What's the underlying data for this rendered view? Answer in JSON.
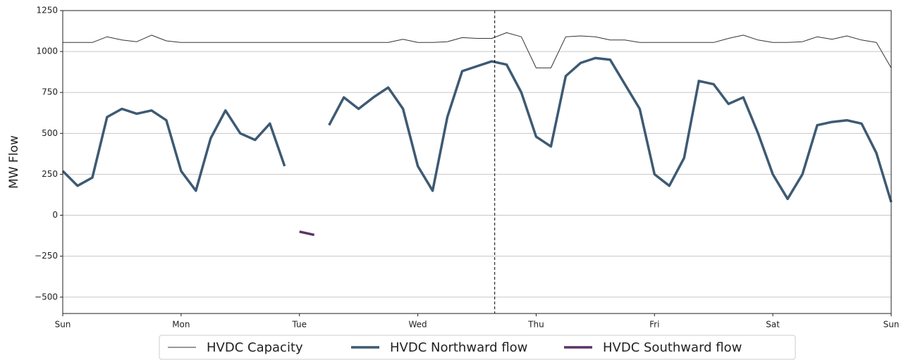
{
  "chart_data": {
    "type": "line",
    "ylabel": "MW Flow",
    "x": [
      0,
      0.125,
      0.25,
      0.375,
      0.5,
      0.625,
      0.75,
      0.875,
      1,
      1.125,
      1.25,
      1.375,
      1.5,
      1.625,
      1.75,
      1.875,
      2,
      2.125,
      2.25,
      2.375,
      2.5,
      2.625,
      2.75,
      2.875,
      3,
      3.125,
      3.25,
      3.375,
      3.5,
      3.625,
      3.75,
      3.875,
      4,
      4.125,
      4.25,
      4.375,
      4.5,
      4.625,
      4.75,
      4.875,
      5,
      5.125,
      5.25,
      5.375,
      5.5,
      5.625,
      5.75,
      5.875,
      6,
      6.125,
      6.25,
      6.375,
      6.5,
      6.625,
      6.75,
      6.875,
      7
    ],
    "series": [
      {
        "name": "HVDC Capacity",
        "color": "#333333",
        "width": 1,
        "values": [
          1055,
          1055,
          1055,
          1090,
          1070,
          1060,
          1100,
          1065,
          1055,
          1055,
          1055,
          1055,
          1055,
          1055,
          1055,
          1055,
          1055,
          1055,
          1055,
          1055,
          1055,
          1055,
          1055,
          1075,
          1055,
          1055,
          1060,
          1085,
          1080,
          1080,
          1115,
          1090,
          900,
          900,
          1090,
          1095,
          1090,
          1070,
          1070,
          1055,
          1055,
          1055,
          1055,
          1055,
          1055,
          1080,
          1100,
          1070,
          1055,
          1055,
          1060,
          1090,
          1075,
          1095,
          1070,
          1055,
          900
        ]
      },
      {
        "name": "HVDC Northward flow",
        "color": "#3d5a73",
        "width": 3.5,
        "values": [
          270,
          180,
          230,
          600,
          650,
          620,
          640,
          580,
          270,
          150,
          470,
          640,
          500,
          460,
          560,
          300,
          null,
          null,
          550,
          720,
          650,
          720,
          780,
          650,
          300,
          150,
          600,
          880,
          910,
          940,
          920,
          750,
          480,
          420,
          850,
          930,
          960,
          950,
          800,
          650,
          250,
          180,
          350,
          820,
          800,
          680,
          720,
          500,
          250,
          100,
          250,
          550,
          570,
          580,
          560,
          380,
          80
        ]
      },
      {
        "name": "HVDC Southward flow",
        "color": "#5b3566",
        "width": 3.5,
        "values": [
          null,
          null,
          null,
          null,
          null,
          null,
          null,
          null,
          null,
          null,
          null,
          null,
          null,
          null,
          null,
          null,
          -100,
          -120,
          null,
          null,
          null,
          null,
          null,
          null,
          null,
          null,
          null,
          null,
          null,
          null,
          null,
          null,
          null,
          null,
          null,
          null,
          null,
          null,
          null,
          null,
          null,
          null,
          null,
          null,
          null,
          null,
          null,
          null,
          null,
          null,
          null,
          null,
          null,
          null,
          null,
          null,
          null
        ]
      }
    ],
    "xlim": [
      0,
      7
    ],
    "xticks": [
      {
        "value": 0,
        "label": "Sun"
      },
      {
        "value": 1,
        "label": "Mon"
      },
      {
        "value": 2,
        "label": "Tue"
      },
      {
        "value": 3,
        "label": "Wed"
      },
      {
        "value": 4,
        "label": "Thu"
      },
      {
        "value": 5,
        "label": "Fri"
      },
      {
        "value": 6,
        "label": "Sat"
      },
      {
        "value": 7,
        "label": "Sun"
      }
    ],
    "ylim": [
      -600,
      1250
    ],
    "yticks": [
      {
        "value": -500,
        "label": "−500"
      },
      {
        "value": -250,
        "label": "−250"
      },
      0,
      250,
      500,
      750,
      1000,
      1250
    ],
    "vline": 3.65,
    "grid": true,
    "legend": "bottom"
  }
}
